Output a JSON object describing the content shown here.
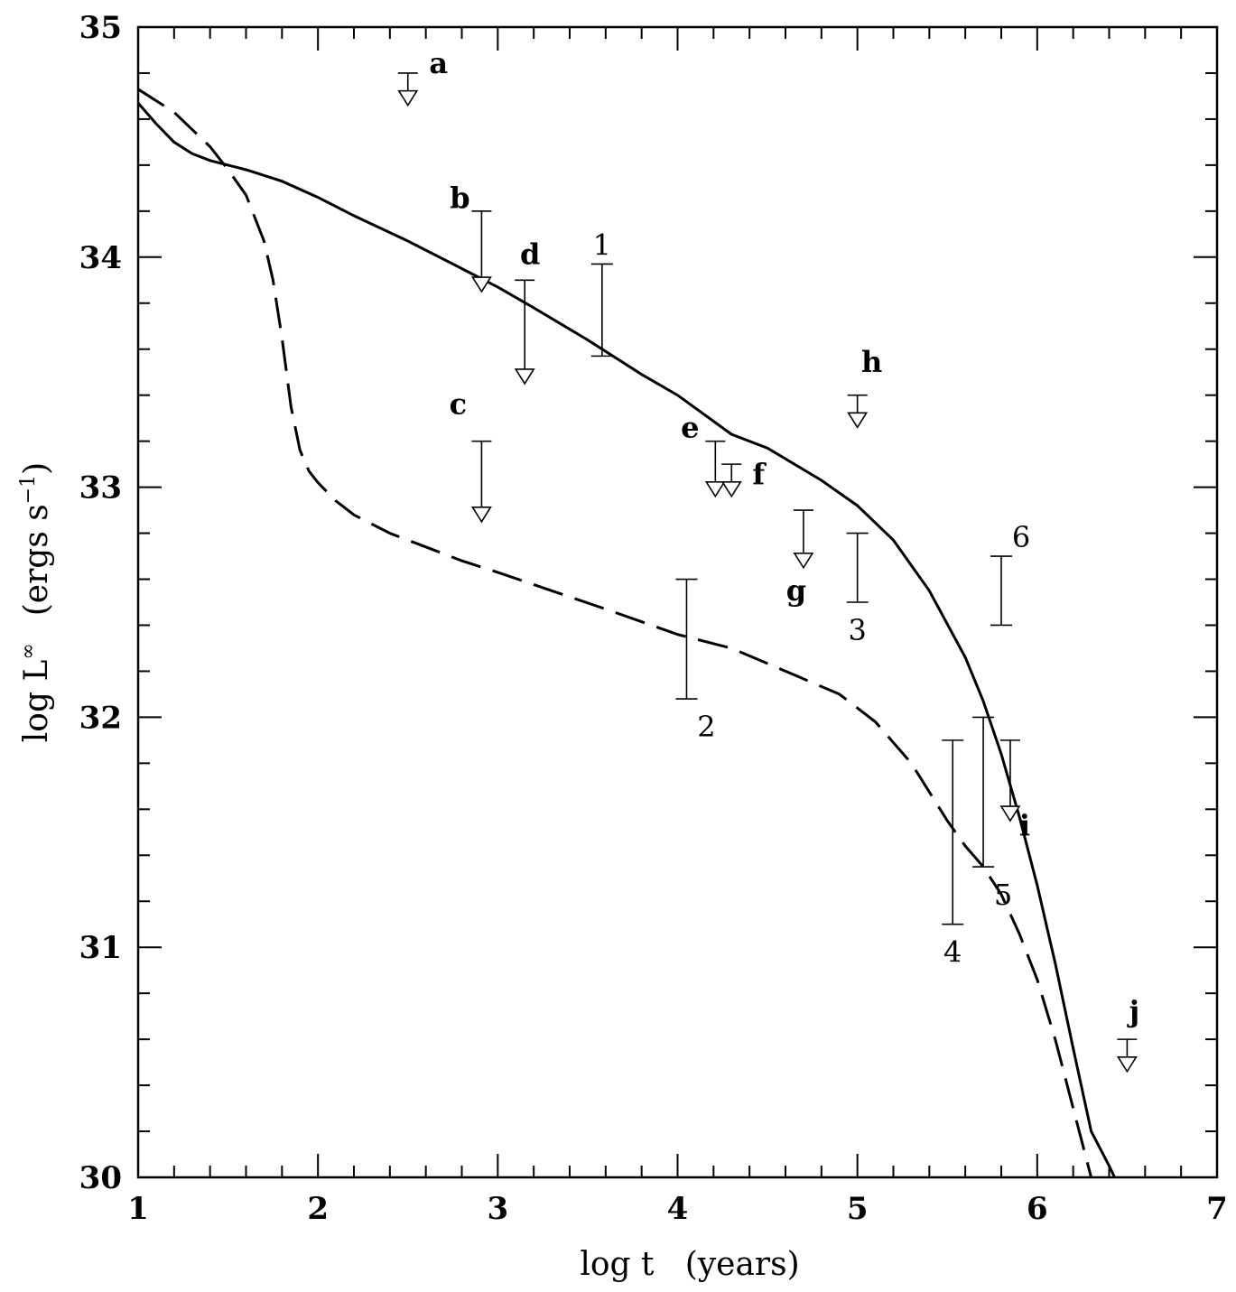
{
  "chart_data": {
    "type": "line",
    "xlabel": "log t   (years)",
    "ylabel_main": "log L",
    "ylabel_sup": "∞",
    "ylabel_units": "(ergs s",
    "ylabel_units_sup": "−1",
    "ylabel_units_close": ")",
    "xlim": [
      1,
      7
    ],
    "ylim": [
      30,
      35
    ],
    "x_ticks": [
      1,
      2,
      3,
      4,
      5,
      6,
      7
    ],
    "y_ticks": [
      30,
      31,
      32,
      33,
      34,
      35
    ],
    "x_tick_labels": [
      "1",
      "2",
      "3",
      "4",
      "5",
      "6",
      "7"
    ],
    "y_tick_labels": [
      "30",
      "31",
      "32",
      "33",
      "34",
      "35"
    ],
    "grid": false,
    "series": [
      {
        "style": "solid",
        "x": [
          1.0,
          1.1,
          1.2,
          1.3,
          1.4,
          1.5,
          1.6,
          1.8,
          2.0,
          2.2,
          2.5,
          2.8,
          3.0,
          3.2,
          3.5,
          3.8,
          4.0,
          4.3,
          4.5,
          4.8,
          5.0,
          5.2,
          5.4,
          5.6,
          5.7,
          5.8,
          5.9,
          6.0,
          6.1,
          6.2,
          6.3,
          6.4,
          6.43
        ],
        "y": [
          34.67,
          34.58,
          34.5,
          34.45,
          34.42,
          34.4,
          34.38,
          34.33,
          34.26,
          34.18,
          34.07,
          33.95,
          33.87,
          33.78,
          33.64,
          33.49,
          33.4,
          33.23,
          33.17,
          33.03,
          32.92,
          32.77,
          32.55,
          32.26,
          32.07,
          31.84,
          31.57,
          31.27,
          30.93,
          30.56,
          30.2,
          30.05,
          30.0
        ]
      },
      {
        "style": "dashed",
        "x": [
          1.0,
          1.2,
          1.4,
          1.5,
          1.6,
          1.7,
          1.75,
          1.8,
          1.85,
          1.9,
          1.95,
          2.0,
          2.1,
          2.2,
          2.4,
          2.6,
          2.8,
          3.0,
          3.3,
          3.6,
          4.0,
          4.3,
          4.6,
          4.9,
          5.1,
          5.3,
          5.5,
          5.6,
          5.7,
          5.8,
          5.9,
          6.0,
          6.1,
          6.2,
          6.3
        ],
        "y": [
          34.73,
          34.63,
          34.48,
          34.38,
          34.27,
          34.07,
          33.9,
          33.65,
          33.35,
          33.16,
          33.07,
          33.02,
          32.94,
          32.88,
          32.8,
          32.74,
          32.68,
          32.63,
          32.55,
          32.47,
          32.36,
          32.3,
          32.2,
          32.1,
          31.98,
          31.8,
          31.55,
          31.44,
          31.35,
          31.23,
          31.06,
          30.86,
          30.6,
          30.3,
          30.0
        ]
      }
    ],
    "error_bars": [
      {
        "label": "1",
        "x": 3.58,
        "ylo": 33.57,
        "yhi": 33.97
      },
      {
        "label": "2",
        "x": 4.05,
        "ylo": 32.08,
        "yhi": 32.6
      },
      {
        "label": "3",
        "x": 5.0,
        "ylo": 32.5,
        "yhi": 32.8
      },
      {
        "label": "4",
        "x": 5.53,
        "ylo": 31.1,
        "yhi": 31.9
      },
      {
        "label": "5",
        "x": 5.7,
        "ylo": 31.35,
        "yhi": 32.0
      },
      {
        "label": "6",
        "x": 5.8,
        "ylo": 32.4,
        "yhi": 32.7
      }
    ],
    "upper_limits": [
      {
        "label": "a",
        "x": 2.5,
        "y": 34.8,
        "ytip": 34.66
      },
      {
        "label": "b",
        "x": 2.91,
        "y": 34.2,
        "ytip": 33.85
      },
      {
        "label": "c",
        "x": 2.91,
        "y": 33.2,
        "ytip": 32.85
      },
      {
        "label": "d",
        "x": 3.15,
        "y": 33.9,
        "ytip": 33.45
      },
      {
        "label": "e",
        "x": 4.21,
        "y": 33.2,
        "ytip": 32.96
      },
      {
        "label": "f",
        "x": 4.3,
        "y": 33.1,
        "ytip": 32.96
      },
      {
        "label": "g",
        "x": 4.7,
        "y": 32.9,
        "ytip": 32.65
      },
      {
        "label": "h",
        "x": 5.0,
        "y": 33.4,
        "ytip": 33.26
      },
      {
        "label": "i",
        "x": 5.85,
        "y": 31.9,
        "ytip": 31.55
      },
      {
        "label": "j",
        "x": 6.5,
        "y": 30.6,
        "ytip": 30.46
      }
    ]
  }
}
